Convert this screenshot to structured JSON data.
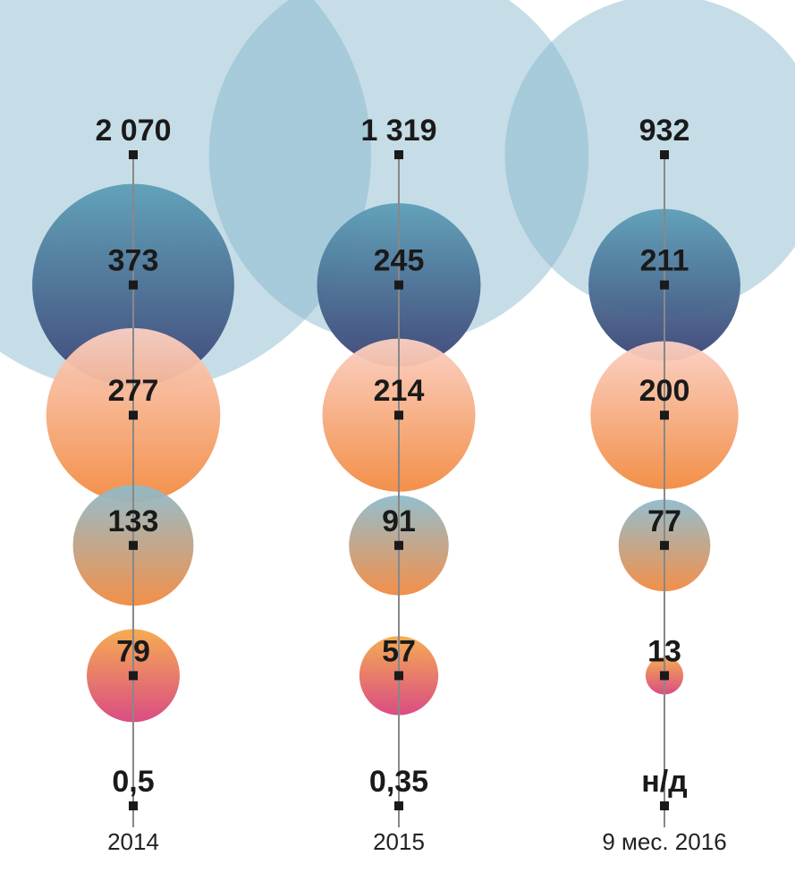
{
  "chart_data": {
    "type": "bubble",
    "categories": [
      "2014",
      "2015",
      "9 мес. 2016"
    ],
    "rows": [
      {
        "values": [
          2070,
          1319,
          932
        ],
        "labels": [
          "2 070",
          "1 319",
          "932"
        ],
        "gradient": [
          "#7fb4c9",
          "#7fb4c9"
        ],
        "opacity": 0.45
      },
      {
        "values": [
          373,
          245,
          211
        ],
        "labels": [
          "373",
          "245",
          "211"
        ],
        "gradient": [
          "#5d9fb7",
          "#3a4274"
        ],
        "opacity": 0.95
      },
      {
        "values": [
          277,
          214,
          200
        ],
        "labels": [
          "277",
          "214",
          "200"
        ],
        "gradient": [
          "#fbd0c4",
          "#f28a40"
        ],
        "opacity": 0.95
      },
      {
        "values": [
          133,
          91,
          77
        ],
        "labels": [
          "133",
          "91",
          "77"
        ],
        "gradient": [
          "#8ebbcb",
          "#f28a40"
        ],
        "opacity": 0.95
      },
      {
        "values": [
          79,
          57,
          13
        ],
        "labels": [
          "79",
          "57",
          "13"
        ],
        "gradient": [
          "#f5a84a",
          "#d8437c"
        ],
        "opacity": 0.95
      },
      {
        "values": [
          0.5,
          0.35,
          null
        ],
        "labels": [
          "0,5",
          "0,35",
          "н/д"
        ],
        "gradient": [
          "#d8437c",
          "#d8437c"
        ],
        "opacity": 0.95
      }
    ],
    "line_color": "#888888",
    "marker_color": "#1a1a1a"
  }
}
